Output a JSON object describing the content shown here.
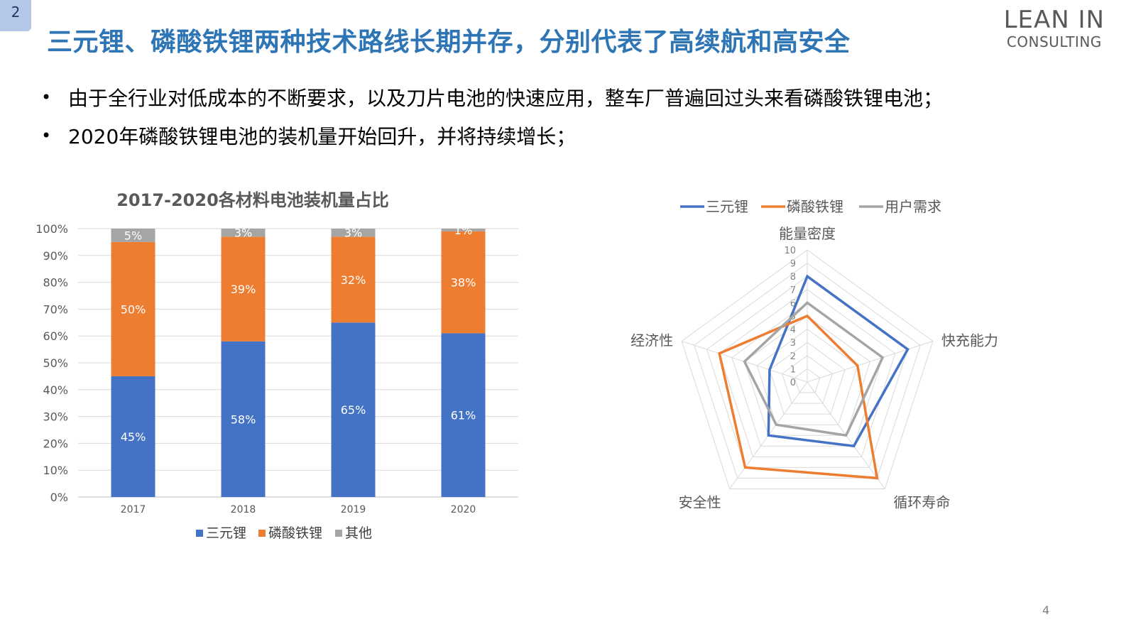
{
  "header": {
    "badge": "2",
    "title": "三元锂、磷酸铁锂两种技术路线长期并存，分别代表了高续航和高安全",
    "logo_line1": "LEAN IN",
    "logo_line2": "CONSULTING"
  },
  "bullets": [
    "由于全行业对低成本的不断要求，以及刀片电池的快速应用，整车厂普遍回过头来看磷酸铁锂电池；",
    "2020年磷酸铁锂电池的装机量开始回升，并将持续增长；"
  ],
  "bullet_symbol": "•",
  "page_number": "4",
  "chart_data": [
    {
      "type": "bar",
      "stacked": true,
      "title": "2017-2020各材料电池装机量占比",
      "categories": [
        "2017",
        "2018",
        "2019",
        "2020"
      ],
      "series": [
        {
          "name": "三元锂",
          "values": [
            45,
            58,
            65,
            61
          ],
          "labels": [
            "45%",
            "58%",
            "65%",
            "61%"
          ],
          "color": "#4472c4"
        },
        {
          "name": "磷酸铁锂",
          "values": [
            50,
            39,
            32,
            38
          ],
          "labels": [
            "50%",
            "39%",
            "32%",
            "38%"
          ],
          "color": "#ed7d31"
        },
        {
          "name": "其他",
          "values": [
            5,
            3,
            3,
            1
          ],
          "labels": [
            "5%",
            "3%",
            "3%",
            "1%"
          ],
          "color": "#a5a5a5"
        }
      ],
      "ylim": [
        0,
        100
      ],
      "yticks": [
        "0%",
        "10%",
        "20%",
        "30%",
        "40%",
        "50%",
        "60%",
        "70%",
        "80%",
        "90%",
        "100%"
      ],
      "grid": true,
      "legend": "bottom"
    },
    {
      "type": "radar",
      "axes": [
        "能量密度",
        "快充能力",
        "循环寿命",
        "安全性",
        "经济性"
      ],
      "range": [
        0,
        10
      ],
      "ticks": [
        "0",
        "1",
        "2",
        "3",
        "4",
        "5",
        "6",
        "7",
        "8",
        "9",
        "10"
      ],
      "series": [
        {
          "name": "三元锂",
          "values": [
            8,
            8,
            6,
            5,
            3
          ],
          "color": "#4472c4"
        },
        {
          "name": "磷酸铁锂",
          "values": [
            5,
            4,
            9,
            8,
            7
          ],
          "color": "#ed7d31"
        },
        {
          "name": "用户需求",
          "values": [
            6,
            6,
            5,
            4,
            5
          ],
          "color": "#a5a5a5"
        }
      ],
      "legend": "top"
    }
  ]
}
